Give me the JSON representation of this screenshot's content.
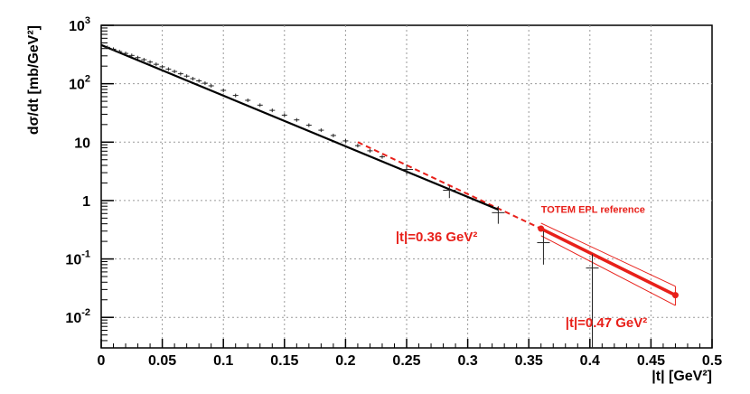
{
  "chart_data": {
    "type": "scatter",
    "title": "",
    "xlabel": "|t| [GeV²]",
    "ylabel": "dσ/dt [mb/GeV²]",
    "xlim": [
      0,
      0.5
    ],
    "ylim": [
      0.003,
      1000
    ],
    "y_scale": "log",
    "grid": true,
    "x_ticks": [
      "0",
      "0.05",
      "0.1",
      "0.15",
      "0.2",
      "0.25",
      "0.3",
      "0.35",
      "0.4",
      "0.45",
      "0.5"
    ],
    "y_ticks": [
      {
        "value": 1000,
        "base": "10",
        "sup": "3"
      },
      {
        "value": 100,
        "base": "10",
        "sup": "2"
      },
      {
        "value": 10,
        "base": "10",
        "sup": ""
      },
      {
        "value": 1,
        "base": "1",
        "sup": ""
      },
      {
        "value": 0.1,
        "base": "10",
        "sup": "-1"
      },
      {
        "value": 0.01,
        "base": "10",
        "sup": "-2"
      }
    ],
    "fit_line": {
      "x": [
        0,
        0.325
      ],
      "y": [
        460,
        0.7
      ],
      "color": "#000000"
    },
    "extrapolation": {
      "x": [
        0.21,
        0.36
      ],
      "y": [
        10,
        0.33
      ],
      "color": "#e8201a"
    },
    "reference": {
      "x": [
        0.36,
        0.47
      ],
      "y": [
        0.33,
        0.024
      ],
      "band_upper": [
        0.41,
        0.034
      ],
      "band_lower": [
        0.25,
        0.016
      ],
      "color": "#e8201a"
    },
    "data_points": [
      {
        "x": 0.005,
        "y": 420
      },
      {
        "x": 0.01,
        "y": 390
      },
      {
        "x": 0.015,
        "y": 355
      },
      {
        "x": 0.02,
        "y": 330
      },
      {
        "x": 0.025,
        "y": 305
      },
      {
        "x": 0.03,
        "y": 280
      },
      {
        "x": 0.035,
        "y": 258
      },
      {
        "x": 0.04,
        "y": 235
      },
      {
        "x": 0.045,
        "y": 215
      },
      {
        "x": 0.05,
        "y": 195
      },
      {
        "x": 0.055,
        "y": 178
      },
      {
        "x": 0.06,
        "y": 162
      },
      {
        "x": 0.065,
        "y": 148
      },
      {
        "x": 0.07,
        "y": 135
      },
      {
        "x": 0.075,
        "y": 122
      },
      {
        "x": 0.08,
        "y": 112
      },
      {
        "x": 0.085,
        "y": 102
      },
      {
        "x": 0.09,
        "y": 92
      },
      {
        "x": 0.1,
        "y": 77
      },
      {
        "x": 0.11,
        "y": 63
      },
      {
        "x": 0.12,
        "y": 52
      },
      {
        "x": 0.13,
        "y": 43
      },
      {
        "x": 0.14,
        "y": 35
      },
      {
        "x": 0.15,
        "y": 29
      },
      {
        "x": 0.16,
        "y": 24
      },
      {
        "x": 0.17,
        "y": 19.5
      },
      {
        "x": 0.18,
        "y": 16
      },
      {
        "x": 0.19,
        "y": 13
      },
      {
        "x": 0.2,
        "y": 10.5
      },
      {
        "x": 0.21,
        "y": 8.7
      },
      {
        "x": 0.22,
        "y": 7.1
      },
      {
        "x": 0.23,
        "y": 5.6
      },
      {
        "x": 0.25,
        "y": 3.4,
        "err_lo": 2.8,
        "err_hi": 4.1
      },
      {
        "x": 0.285,
        "y": 1.5,
        "err_lo": 1.1,
        "err_hi": 1.8
      },
      {
        "x": 0.325,
        "y": 0.62,
        "err_lo": 0.4,
        "err_hi": 0.8
      },
      {
        "x": 0.362,
        "y": 0.19,
        "err_lo": 0.08,
        "err_hi": 0.3
      },
      {
        "x": 0.402,
        "y": 0.07,
        "err_lo": 0.003,
        "err_hi": 0.12
      }
    ],
    "annotations": [
      {
        "text": "TOTEM EPL reference",
        "x": 0.36,
        "y": 0.62
      },
      {
        "text": "|t|=0.36 GeV²",
        "x": 0.241,
        "y": 0.2
      },
      {
        "text": "|t|=0.47 GeV²",
        "x": 0.38,
        "y": 0.0068
      }
    ]
  }
}
